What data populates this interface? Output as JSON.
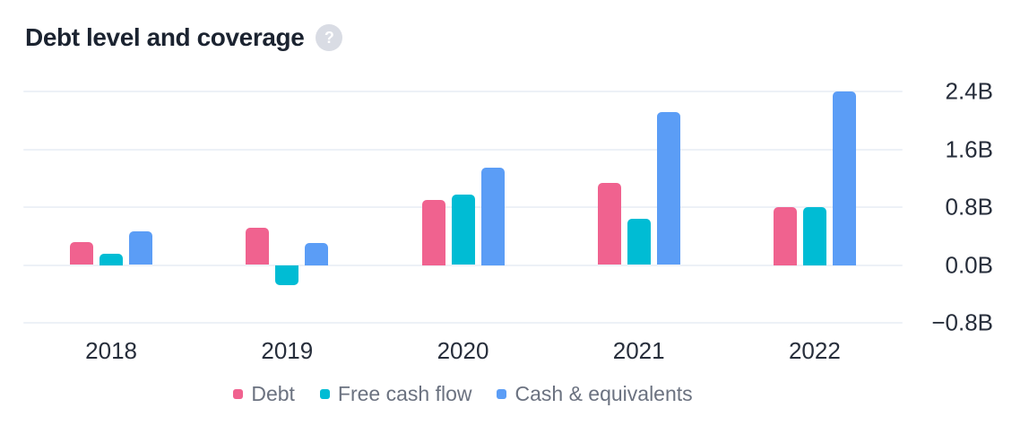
{
  "header": {
    "title": "Debt level and coverage",
    "help_glyph": "?"
  },
  "chart_data": {
    "type": "bar",
    "title": "Debt level and coverage",
    "categories": [
      "2018",
      "2019",
      "2020",
      "2021",
      "2022"
    ],
    "series": [
      {
        "name": "Debt",
        "color": "#F0628F",
        "values": [
          0.32,
          0.52,
          0.9,
          1.14,
          0.8
        ]
      },
      {
        "name": "Free cash flow",
        "color": "#00BCD4",
        "values": [
          0.15,
          -0.28,
          0.97,
          0.64,
          0.8
        ]
      },
      {
        "name": "Cash & equivalents",
        "color": "#5B9DF6",
        "values": [
          0.46,
          0.3,
          1.35,
          2.12,
          2.4
        ]
      }
    ],
    "unit": "B",
    "y_ticks": [
      "2.4B",
      "1.6B",
      "0.8B",
      "0.0B",
      "−0.8B"
    ],
    "y_tick_values": [
      2.4,
      1.6,
      0.8,
      0.0,
      -0.8
    ],
    "ylim": [
      -0.8,
      2.4
    ],
    "grid": true,
    "legend_position": "bottom"
  }
}
